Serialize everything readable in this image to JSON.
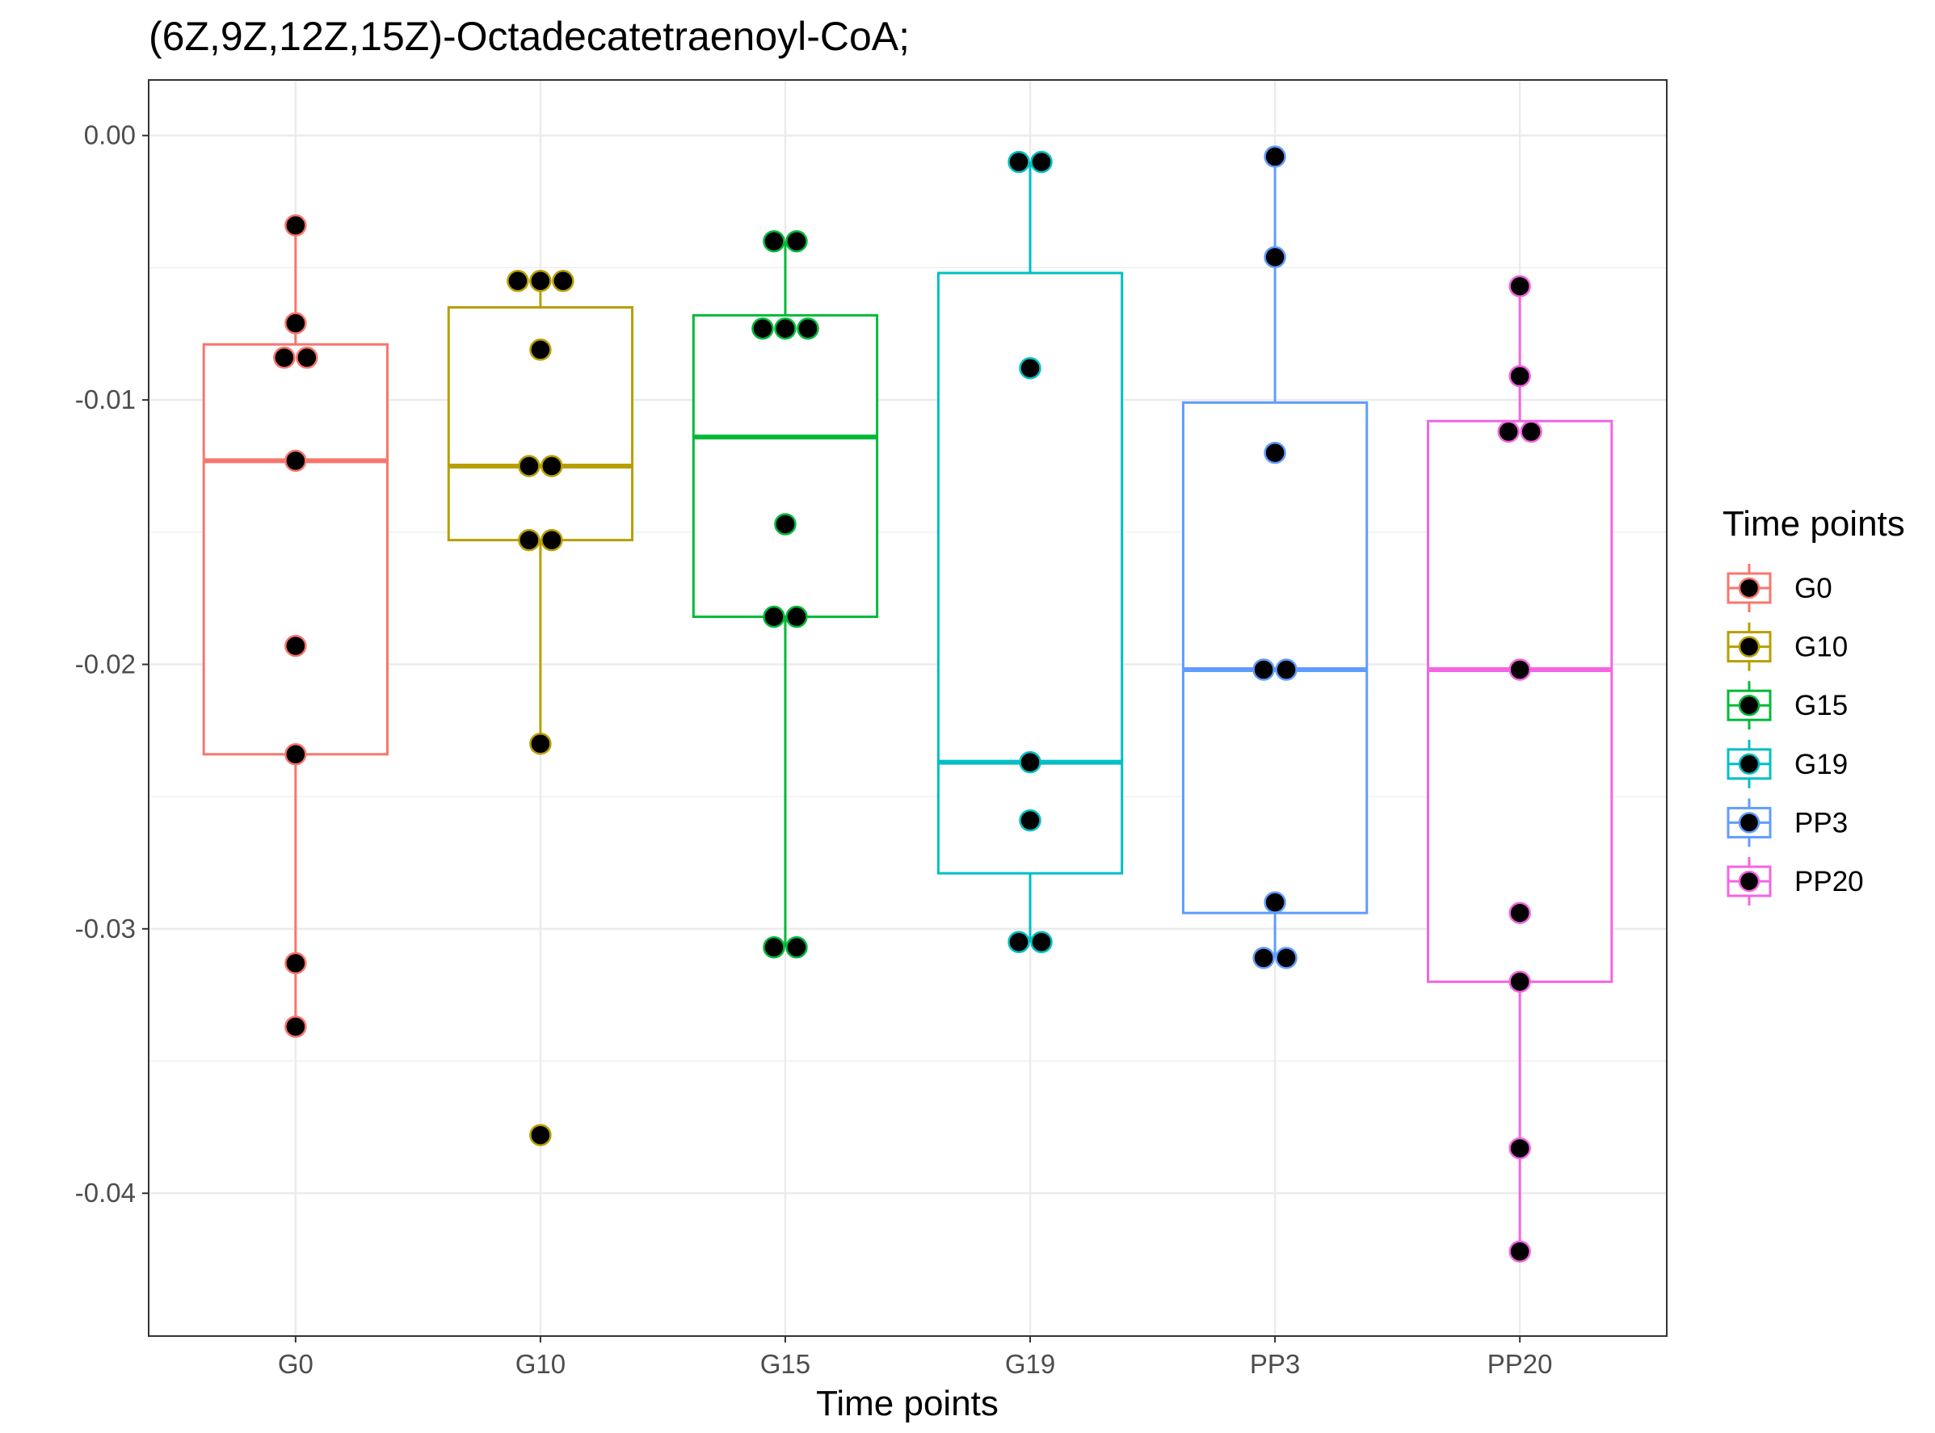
{
  "chart_data": {
    "type": "box",
    "title": "(6Z,9Z,12Z,15Z)-Octadecatetraenoyl-CoA;",
    "xlabel": "Time points",
    "ylabel": "",
    "ylim": [
      -0.0454,
      0.0021
    ],
    "yticks": [
      0.0,
      -0.01,
      -0.02,
      -0.03,
      -0.04
    ],
    "ytick_labels": [
      "0.00",
      "-0.01",
      "-0.02",
      "-0.03",
      "-0.04"
    ],
    "grid": true,
    "legend": {
      "title": "Time points",
      "position": "right"
    },
    "categories": [
      "G0",
      "G10",
      "G15",
      "G19",
      "PP3",
      "PP20"
    ],
    "series": [
      {
        "name": "G0",
        "color": "#F8766D",
        "box": {
          "whisker_low": -0.0337,
          "q1": -0.0234,
          "median": -0.0123,
          "q3": -0.0079,
          "whisker_high": -0.0034
        },
        "points": [
          -0.0034,
          -0.0071,
          -0.0084,
          -0.0084,
          -0.0123,
          -0.0193,
          -0.0234,
          -0.0313,
          -0.0337
        ]
      },
      {
        "name": "G10",
        "color": "#B79F00",
        "box": {
          "whisker_low": -0.023,
          "q1": -0.0153,
          "median": -0.0125,
          "q3": -0.0065,
          "whisker_high": -0.0055
        },
        "points": [
          -0.0055,
          -0.0055,
          -0.0055,
          -0.0081,
          -0.0125,
          -0.0125,
          -0.0153,
          -0.0153,
          -0.023,
          -0.0378
        ]
      },
      {
        "name": "G15",
        "color": "#00BA38",
        "box": {
          "whisker_low": -0.0307,
          "q1": -0.0182,
          "median": -0.0114,
          "q3": -0.0068,
          "whisker_high": -0.004
        },
        "points": [
          -0.004,
          -0.004,
          -0.0073,
          -0.0073,
          -0.0073,
          -0.0147,
          -0.0182,
          -0.0182,
          -0.0307,
          -0.0307
        ]
      },
      {
        "name": "G19",
        "color": "#00BFC4",
        "box": {
          "whisker_low": -0.0305,
          "q1": -0.0279,
          "median": -0.0237,
          "q3": -0.0052,
          "whisker_high": -0.001
        },
        "points": [
          -0.001,
          -0.001,
          -0.0088,
          -0.0237,
          -0.0259,
          -0.0305,
          -0.0305
        ]
      },
      {
        "name": "PP3",
        "color": "#619CFF",
        "box": {
          "whisker_low": -0.0311,
          "q1": -0.0294,
          "median": -0.0202,
          "q3": -0.0101,
          "whisker_high": -0.0008
        },
        "points": [
          -0.0008,
          -0.0046,
          -0.012,
          -0.0202,
          -0.0202,
          -0.029,
          -0.0311,
          -0.0311
        ]
      },
      {
        "name": "PP20",
        "color": "#F564E3",
        "box": {
          "whisker_low": -0.0422,
          "q1": -0.032,
          "median": -0.0202,
          "q3": -0.0108,
          "whisker_high": -0.0057
        },
        "points": [
          -0.0057,
          -0.0091,
          -0.0112,
          -0.0112,
          -0.0202,
          -0.0294,
          -0.032,
          -0.0383,
          -0.0422
        ]
      }
    ]
  }
}
